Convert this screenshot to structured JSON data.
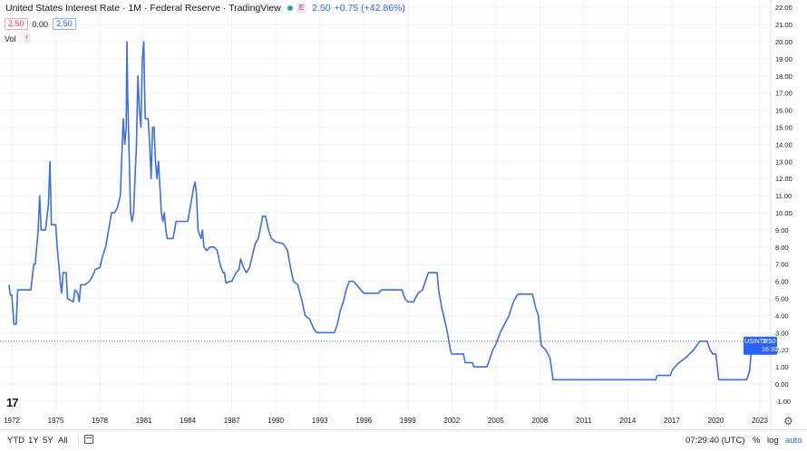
{
  "header": {
    "title": "United States Interest Rate · 1M · Federal Reserve · TradingView",
    "badge": "E",
    "value": "2.50",
    "change": "+0.75 (+42.86%)"
  },
  "ohlc_row": {
    "box1": "2.50",
    "plain": "0.00",
    "box2": "2.50"
  },
  "vol": {
    "label": "Vol",
    "warning": "!"
  },
  "price_label": {
    "symbol": "USINTR",
    "value": "2.50",
    "countdown": "16:30:20"
  },
  "logo": "17",
  "bottom": {
    "ranges": [
      "YTD",
      "1Y",
      "5Y",
      "All"
    ],
    "time": "07:29:40 (UTC)",
    "pct": "%",
    "log": "log",
    "auto": "auto"
  },
  "colors": {
    "line": "#3d6fe0",
    "accent": "#2962ff",
    "grid": "#f0f3fa",
    "axis_text": "#131722"
  },
  "icons": [
    "calendar-range-icon",
    "settings-gear-icon",
    "tradingview-logo-icon"
  ],
  "chart_data": {
    "type": "line",
    "title": "United States Interest Rate · 1M · Federal Reserve · TradingView",
    "ylim": [
      -1,
      22
    ],
    "xlim": [
      1971.8,
      2023.2
    ],
    "y_ticks": [
      "-1.00",
      "0.00",
      "1.00",
      "2.00",
      "3.00",
      "4.00",
      "5.00",
      "6.00",
      "7.00",
      "8.00",
      "9.00",
      "10.00",
      "11.00",
      "12.00",
      "13.00",
      "14.00",
      "15.00",
      "16.00",
      "17.00",
      "18.00",
      "19.00",
      "20.00",
      "21.00",
      "22.00"
    ],
    "x_ticks": [
      {
        "label": "1972",
        "x": 1972
      },
      {
        "label": "1975",
        "x": 1975
      },
      {
        "label": "1978",
        "x": 1978
      },
      {
        "label": "1981",
        "x": 1981
      },
      {
        "label": "1984",
        "x": 1984
      },
      {
        "label": "1987",
        "x": 1987
      },
      {
        "label": "1990",
        "x": 1990
      },
      {
        "label": "1993",
        "x": 1993
      },
      {
        "label": "1996",
        "x": 1996
      },
      {
        "label": "1999",
        "x": 1999
      },
      {
        "label": "2002",
        "x": 2002
      },
      {
        "label": "2005",
        "x": 2005
      },
      {
        "label": "2008",
        "x": 2008
      },
      {
        "label": "2011",
        "x": 2011
      },
      {
        "label": "2014",
        "x": 2014
      },
      {
        "label": "2017",
        "x": 2017
      },
      {
        "label": "2020",
        "x": 2020
      },
      {
        "label": "2023",
        "x": 2023
      }
    ],
    "current_value": 2.5,
    "grid": true,
    "series": [
      {
        "points": [
          [
            1971.8,
            5.8
          ],
          [
            1971.9,
            5.2
          ],
          [
            1972.0,
            5.2
          ],
          [
            1972.15,
            3.5
          ],
          [
            1972.3,
            3.5
          ],
          [
            1972.4,
            5.5
          ],
          [
            1973.0,
            5.5
          ],
          [
            1973.3,
            5.5
          ],
          [
            1973.5,
            7.0
          ],
          [
            1973.6,
            7.0
          ],
          [
            1973.8,
            9.0
          ],
          [
            1973.9,
            11.0
          ],
          [
            1974.0,
            9.0
          ],
          [
            1974.3,
            9.0
          ],
          [
            1974.5,
            10.5
          ],
          [
            1974.6,
            13.0
          ],
          [
            1974.7,
            9.3
          ],
          [
            1975.0,
            9.3
          ],
          [
            1975.1,
            8.0
          ],
          [
            1975.3,
            6.0
          ],
          [
            1975.4,
            5.3
          ],
          [
            1975.5,
            6.5
          ],
          [
            1975.7,
            6.5
          ],
          [
            1975.8,
            5.0
          ],
          [
            1976.0,
            4.9
          ],
          [
            1976.2,
            4.8
          ],
          [
            1976.3,
            5.5
          ],
          [
            1976.5,
            5.3
          ],
          [
            1976.6,
            4.8
          ],
          [
            1976.7,
            5.8
          ],
          [
            1977.0,
            5.8
          ],
          [
            1977.3,
            6.0
          ],
          [
            1977.5,
            6.3
          ],
          [
            1977.7,
            6.7
          ],
          [
            1978.0,
            6.8
          ],
          [
            1978.2,
            7.5
          ],
          [
            1978.4,
            8.0
          ],
          [
            1978.6,
            9.0
          ],
          [
            1978.8,
            10.0
          ],
          [
            1979.0,
            10.0
          ],
          [
            1979.2,
            10.3
          ],
          [
            1979.4,
            11.0
          ],
          [
            1979.6,
            15.5
          ],
          [
            1979.7,
            14.0
          ],
          [
            1979.8,
            15.0
          ],
          [
            1979.85,
            20.0
          ],
          [
            1979.9,
            17.0
          ],
          [
            1980.1,
            10.0
          ],
          [
            1980.2,
            9.5
          ],
          [
            1980.3,
            10.0
          ],
          [
            1980.5,
            14.0
          ],
          [
            1980.6,
            18.0
          ],
          [
            1980.7,
            16.0
          ],
          [
            1980.8,
            15.0
          ],
          [
            1980.9,
            19.0
          ],
          [
            1981.0,
            20.0
          ],
          [
            1981.05,
            17.5
          ],
          [
            1981.1,
            15.5
          ],
          [
            1981.3,
            15.5
          ],
          [
            1981.4,
            14.0
          ],
          [
            1981.5,
            12.0
          ],
          [
            1981.6,
            15.0
          ],
          [
            1981.7,
            15.0
          ],
          [
            1981.8,
            13.0
          ],
          [
            1981.9,
            12.0
          ],
          [
            1982.0,
            13.0
          ],
          [
            1982.1,
            11.5
          ],
          [
            1982.2,
            10.0
          ],
          [
            1982.3,
            9.5
          ],
          [
            1982.4,
            10.0
          ],
          [
            1982.5,
            9.0
          ],
          [
            1982.6,
            8.5
          ],
          [
            1983.0,
            8.5
          ],
          [
            1983.2,
            9.5
          ],
          [
            1983.5,
            9.5
          ],
          [
            1983.7,
            9.5
          ],
          [
            1984.0,
            9.5
          ],
          [
            1984.2,
            10.5
          ],
          [
            1984.4,
            11.5
          ],
          [
            1984.5,
            11.8
          ],
          [
            1984.6,
            11.0
          ],
          [
            1984.7,
            9.0
          ],
          [
            1984.9,
            8.5
          ],
          [
            1985.0,
            9.0
          ],
          [
            1985.1,
            8.0
          ],
          [
            1985.3,
            7.8
          ],
          [
            1985.5,
            8.0
          ],
          [
            1985.8,
            8.0
          ],
          [
            1986.0,
            7.8
          ],
          [
            1986.2,
            7.0
          ],
          [
            1986.4,
            6.5
          ],
          [
            1986.5,
            6.5
          ],
          [
            1986.6,
            5.9
          ],
          [
            1986.9,
            6.0
          ],
          [
            1987.0,
            6.0
          ],
          [
            1987.3,
            6.5
          ],
          [
            1987.5,
            6.7
          ],
          [
            1987.6,
            7.3
          ],
          [
            1987.8,
            6.8
          ],
          [
            1988.0,
            6.5
          ],
          [
            1988.2,
            6.8
          ],
          [
            1988.4,
            7.5
          ],
          [
            1988.6,
            8.2
          ],
          [
            1988.8,
            8.5
          ],
          [
            1989.0,
            9.3
          ],
          [
            1989.1,
            9.8
          ],
          [
            1989.3,
            9.8
          ],
          [
            1989.5,
            9.0
          ],
          [
            1989.7,
            8.5
          ],
          [
            1990.0,
            8.3
          ],
          [
            1990.5,
            8.2
          ],
          [
            1990.8,
            7.8
          ],
          [
            1991.0,
            6.8
          ],
          [
            1991.2,
            6.0
          ],
          [
            1991.5,
            5.8
          ],
          [
            1991.8,
            4.8
          ],
          [
            1992.0,
            4.0
          ],
          [
            1992.3,
            3.8
          ],
          [
            1992.6,
            3.2
          ],
          [
            1992.8,
            3.0
          ],
          [
            1993.0,
            3.0
          ],
          [
            1993.5,
            3.0
          ],
          [
            1994.0,
            3.0
          ],
          [
            1994.2,
            3.5
          ],
          [
            1994.4,
            4.3
          ],
          [
            1994.6,
            4.8
          ],
          [
            1994.8,
            5.5
          ],
          [
            1995.0,
            6.0
          ],
          [
            1995.3,
            6.0
          ],
          [
            1995.6,
            5.7
          ],
          [
            1996.0,
            5.3
          ],
          [
            1996.5,
            5.3
          ],
          [
            1997.0,
            5.3
          ],
          [
            1997.2,
            5.5
          ],
          [
            1998.0,
            5.5
          ],
          [
            1998.6,
            5.5
          ],
          [
            1998.8,
            5.0
          ],
          [
            1999.0,
            4.8
          ],
          [
            1999.4,
            4.8
          ],
          [
            1999.5,
            5.0
          ],
          [
            1999.7,
            5.3
          ],
          [
            2000.0,
            5.5
          ],
          [
            2000.2,
            6.0
          ],
          [
            2000.4,
            6.5
          ],
          [
            2001.0,
            6.5
          ],
          [
            2001.1,
            5.5
          ],
          [
            2001.3,
            4.5
          ],
          [
            2001.5,
            3.8
          ],
          [
            2001.7,
            3.0
          ],
          [
            2001.9,
            2.0
          ],
          [
            2002.0,
            1.75
          ],
          [
            2002.8,
            1.75
          ],
          [
            2002.9,
            1.25
          ],
          [
            2003.4,
            1.25
          ],
          [
            2003.5,
            1.0
          ],
          [
            2004.4,
            1.0
          ],
          [
            2004.6,
            1.5
          ],
          [
            2004.8,
            2.0
          ],
          [
            2005.0,
            2.3
          ],
          [
            2005.3,
            3.0
          ],
          [
            2005.6,
            3.5
          ],
          [
            2005.9,
            4.0
          ],
          [
            2006.2,
            4.8
          ],
          [
            2006.5,
            5.25
          ],
          [
            2007.5,
            5.25
          ],
          [
            2007.7,
            4.5
          ],
          [
            2007.9,
            4.0
          ],
          [
            2008.0,
            3.0
          ],
          [
            2008.1,
            2.25
          ],
          [
            2008.4,
            2.0
          ],
          [
            2008.7,
            1.5
          ],
          [
            2008.9,
            0.25
          ],
          [
            2015.9,
            0.25
          ],
          [
            2016.0,
            0.5
          ],
          [
            2016.9,
            0.5
          ],
          [
            2017.0,
            0.75
          ],
          [
            2017.2,
            1.0
          ],
          [
            2017.5,
            1.25
          ],
          [
            2017.9,
            1.5
          ],
          [
            2018.2,
            1.75
          ],
          [
            2018.5,
            2.0
          ],
          [
            2018.7,
            2.25
          ],
          [
            2018.9,
            2.5
          ],
          [
            2019.4,
            2.5
          ],
          [
            2019.6,
            2.0
          ],
          [
            2019.8,
            1.75
          ],
          [
            2020.0,
            1.75
          ],
          [
            2020.2,
            0.25
          ],
          [
            2022.1,
            0.25
          ],
          [
            2022.3,
            0.75
          ],
          [
            2022.4,
            1.75
          ],
          [
            2022.5,
            2.5
          ]
        ]
      }
    ]
  }
}
